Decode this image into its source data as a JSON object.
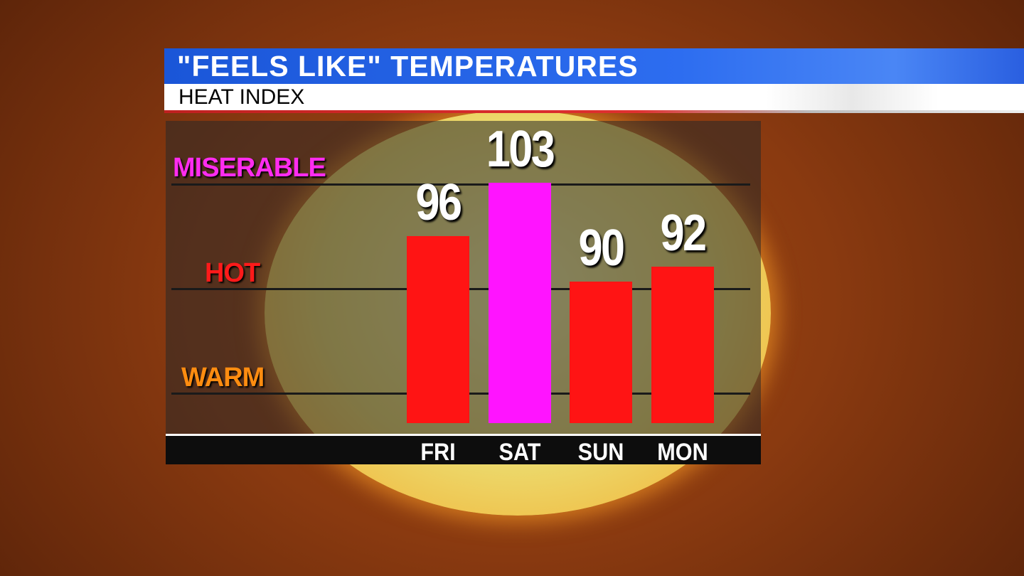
{
  "header": {
    "title": "\"FEELS LIKE\" TEMPERATURES",
    "subtitle": "HEAT INDEX"
  },
  "chart_data": {
    "type": "bar",
    "title": "\"FEELS LIKE\" TEMPERATURES",
    "subtitle": "HEAT INDEX",
    "categories": [
      "FRI",
      "SAT",
      "SUN",
      "MON"
    ],
    "values": [
      96,
      103,
      90,
      92
    ],
    "bar_colors": [
      "#ff1414",
      "#ff14ff",
      "#ff1414",
      "#ff1414"
    ],
    "y_category_labels": [
      {
        "label": "MISERABLE",
        "color": "#ff2cf0"
      },
      {
        "label": "HOT",
        "color": "#ff1a1a"
      },
      {
        "label": "WARM",
        "color": "#ff8c10"
      }
    ],
    "grid": true,
    "legend": "none"
  }
}
